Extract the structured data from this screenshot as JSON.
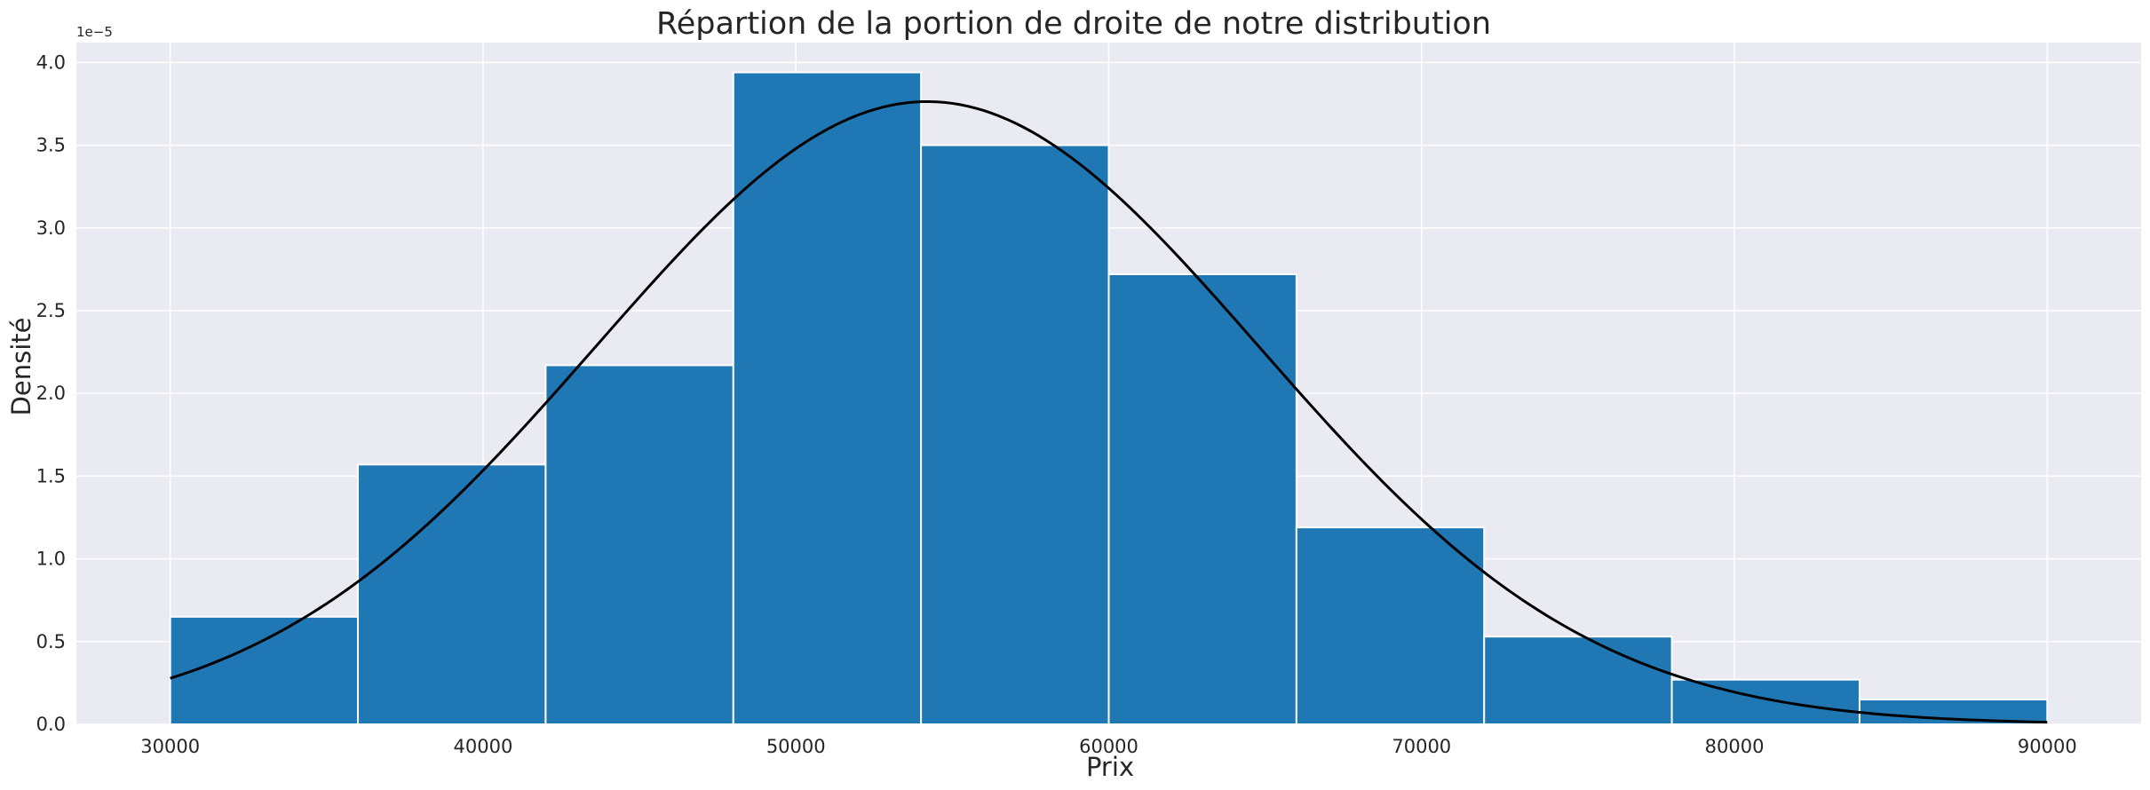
{
  "chart_data": {
    "type": "bar",
    "title": "Répartion de la portion de droite de notre distribution",
    "xlabel": "Prix",
    "ylabel": "Densité",
    "y_offset_label": "1e−5",
    "y_scale": 1e-05,
    "xlim": [
      27000,
      93000
    ],
    "ylim": [
      0,
      4.12
    ],
    "grid": true,
    "x_ticks": [
      30000,
      40000,
      50000,
      60000,
      70000,
      80000,
      90000
    ],
    "x_tick_labels": [
      "30000",
      "40000",
      "50000",
      "60000",
      "70000",
      "80000",
      "90000"
    ],
    "y_ticks": [
      0,
      0.5,
      1.0,
      1.5,
      2.0,
      2.5,
      3.0,
      3.5,
      4.0
    ],
    "y_tick_labels": [
      "0.0",
      "0.5",
      "1.0",
      "1.5",
      "2.0",
      "2.5",
      "3.0",
      "3.5",
      "4.0"
    ],
    "bins": [
      {
        "x0": 30000,
        "x1": 36000,
        "value": 0.65
      },
      {
        "x0": 36000,
        "x1": 42000,
        "value": 1.57
      },
      {
        "x0": 42000,
        "x1": 48000,
        "value": 2.17
      },
      {
        "x0": 48000,
        "x1": 54000,
        "value": 3.94
      },
      {
        "x0": 54000,
        "x1": 60000,
        "value": 3.5
      },
      {
        "x0": 60000,
        "x1": 66000,
        "value": 2.72
      },
      {
        "x0": 66000,
        "x1": 72000,
        "value": 1.19
      },
      {
        "x0": 72000,
        "x1": 78000,
        "value": 0.53
      },
      {
        "x0": 78000,
        "x1": 84000,
        "value": 0.27
      },
      {
        "x0": 84000,
        "x1": 90000,
        "value": 0.15
      }
    ],
    "curve": {
      "type": "normal-pdf",
      "mean": 54200,
      "std": 10600,
      "x_range": [
        30000,
        90000
      ]
    },
    "bar_color": "#1f77b4",
    "bar_edge_color": "#ffffff",
    "curve_color": "#000000",
    "background_color": "#eaeaf2",
    "grid_color": "#ffffff"
  }
}
